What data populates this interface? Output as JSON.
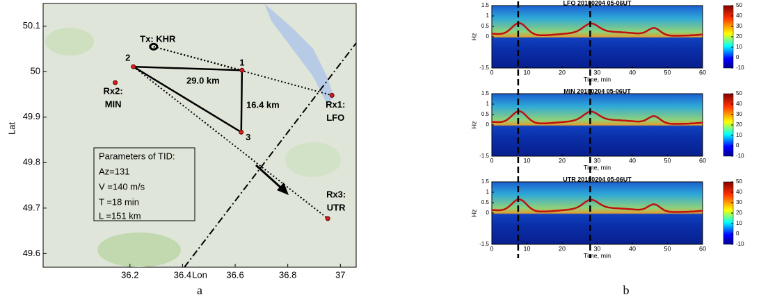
{
  "chart_data": [
    {
      "type": "map",
      "xlabel": "Lon",
      "ylabel": "Lat",
      "caption": "a",
      "xlim": [
        35.87,
        37.06
      ],
      "ylim": [
        49.57,
        50.15
      ],
      "xticks": [
        36.2,
        36.4,
        36.6,
        36.8,
        37
      ],
      "yticks": [
        49.6,
        49.7,
        49.8,
        49.9,
        50,
        50.1
      ],
      "points": [
        {
          "label": [
            "Tx: KHR"
          ],
          "lon": 36.29,
          "lat": 50.055
        },
        {
          "label": [
            "2"
          ],
          "lon": 36.213,
          "lat": 50.011
        },
        {
          "label": [
            "1"
          ],
          "lon": 36.626,
          "lat": 50.003
        },
        {
          "label": [
            "3"
          ],
          "lon": 36.623,
          "lat": 49.867
        },
        {
          "label": [
            "Rx2:",
            "MIN"
          ],
          "lon": 36.144,
          "lat": 49.976
        },
        {
          "label": [
            "Rx1:",
            "LFO"
          ],
          "lon": 36.968,
          "lat": 49.948
        },
        {
          "label": [
            "Rx3:",
            "UTR"
          ],
          "lon": 36.952,
          "lat": 49.677
        }
      ],
      "annotations": [
        "29.0 km",
        "16.4 km"
      ],
      "box_title": "Parameters of TID:",
      "box_lines": [
        "Az=131",
        "V =140 m/s",
        "T =18 min",
        "L =151 km"
      ]
    },
    {
      "type": "spectrogram",
      "caption": "b",
      "xlabel": "Time, min",
      "ylabel": "Hz",
      "xlim": [
        0,
        60
      ],
      "xticks": [
        0,
        10,
        20,
        30,
        40,
        50,
        60
      ],
      "ylim": [
        -1.5,
        1.5
      ],
      "yticks": [
        -1.5,
        0,
        0.5,
        1,
        1.5
      ],
      "clim": [
        -10,
        50
      ],
      "cticks": [
        -10,
        0,
        10,
        20,
        30,
        40,
        50
      ],
      "event_lines": [
        7.5,
        28
      ],
      "panels": [
        {
          "title": "LFO  20180204 05-06UT"
        },
        {
          "title": "MIN  20180204 05-06UT"
        },
        {
          "title": "UTR  20180204 05-06UT"
        }
      ]
    }
  ]
}
